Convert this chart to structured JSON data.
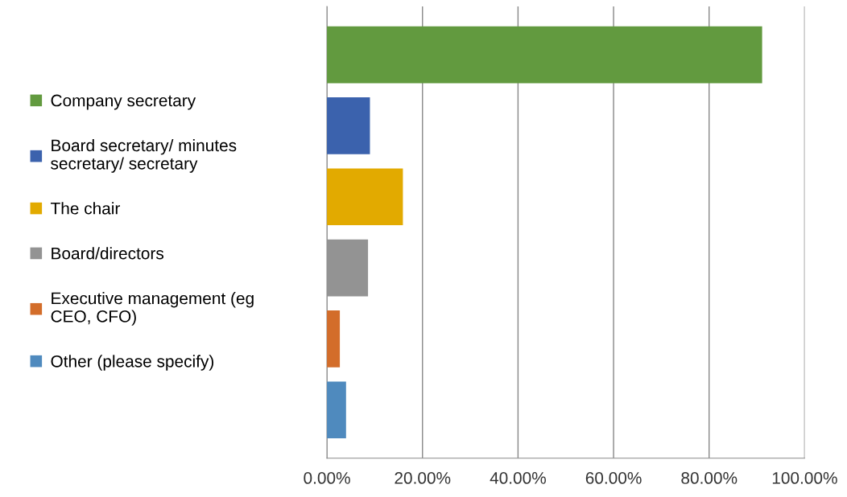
{
  "chart_data": {
    "type": "bar",
    "orientation": "horizontal",
    "categories": [
      null
    ],
    "series": [
      {
        "name": "Company secretary",
        "color": "#629a3f",
        "values": [
          91.1
        ]
      },
      {
        "name": "Board secretary/ minutes\nsecretary/ secretary",
        "color": "#3b62ad",
        "values": [
          9.0
        ]
      },
      {
        "name": "The chair",
        "color": "#e2aa00",
        "values": [
          15.9
        ]
      },
      {
        "name": "Board/directors",
        "color": "#939393",
        "values": [
          8.6
        ]
      },
      {
        "name": "Executive management (eg\nCEO, CFO)",
        "color": "#d36d2a",
        "values": [
          2.7
        ]
      },
      {
        "name": "Other (please specify)",
        "color": "#4f8abe",
        "values": [
          4.0
        ]
      }
    ],
    "xlim": [
      0,
      100
    ],
    "xticks": [
      {
        "value": 0,
        "label": "0.00%"
      },
      {
        "value": 20,
        "label": "20.00%"
      },
      {
        "value": 40,
        "label": "40.00%"
      },
      {
        "value": 60,
        "label": "60.00%"
      },
      {
        "value": 80,
        "label": "80.00%"
      },
      {
        "value": 100,
        "label": "100.00%"
      }
    ],
    "grid": "x",
    "legend": "left"
  }
}
